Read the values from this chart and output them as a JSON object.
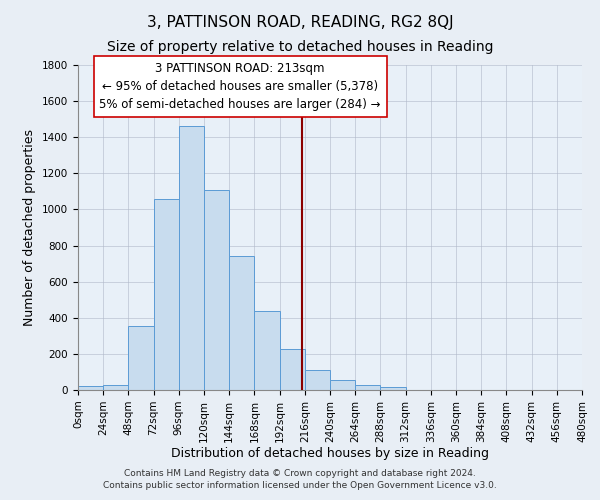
{
  "title": "3, PATTINSON ROAD, READING, RG2 8QJ",
  "subtitle": "Size of property relative to detached houses in Reading",
  "xlabel": "Distribution of detached houses by size in Reading",
  "ylabel": "Number of detached properties",
  "bin_edges": [
    0,
    24,
    48,
    72,
    96,
    120,
    144,
    168,
    192,
    216,
    240,
    264,
    288,
    312,
    336,
    360,
    384,
    408,
    432,
    456,
    480
  ],
  "bar_heights": [
    20,
    30,
    355,
    1060,
    1460,
    1110,
    740,
    440,
    225,
    110,
    55,
    25,
    15,
    0,
    0,
    0,
    0,
    0,
    0,
    0
  ],
  "bar_facecolor": "#c8dcee",
  "bar_edgecolor": "#5b9bd5",
  "vline_x": 213,
  "vline_color": "#8b0000",
  "annotation_title": "3 PATTINSON ROAD: 213sqm",
  "annotation_line1": "← 95% of detached houses are smaller (5,378)",
  "annotation_line2": "5% of semi-detached houses are larger (284) →",
  "annotation_box_edgecolor": "#cc0000",
  "annotation_box_facecolor": "#ffffff",
  "ylim": [
    0,
    1800
  ],
  "xlim": [
    0,
    480
  ],
  "yticks": [
    0,
    200,
    400,
    600,
    800,
    1000,
    1200,
    1400,
    1600,
    1800
  ],
  "tick_labels": [
    "0sqm",
    "24sqm",
    "48sqm",
    "72sqm",
    "96sqm",
    "120sqm",
    "144sqm",
    "168sqm",
    "192sqm",
    "216sqm",
    "240sqm",
    "264sqm",
    "288sqm",
    "312sqm",
    "336sqm",
    "360sqm",
    "384sqm",
    "408sqm",
    "432sqm",
    "456sqm",
    "480sqm"
  ],
  "footer1": "Contains HM Land Registry data © Crown copyright and database right 2024.",
  "footer2": "Contains public sector information licensed under the Open Government Licence v3.0.",
  "bg_color": "#e8eef5",
  "plot_bg_color": "#e8f0f8",
  "title_fontsize": 11,
  "subtitle_fontsize": 10,
  "axis_label_fontsize": 9,
  "tick_fontsize": 7.5,
  "annotation_title_fontsize": 9,
  "annotation_text_fontsize": 8.5,
  "footer_fontsize": 6.5
}
